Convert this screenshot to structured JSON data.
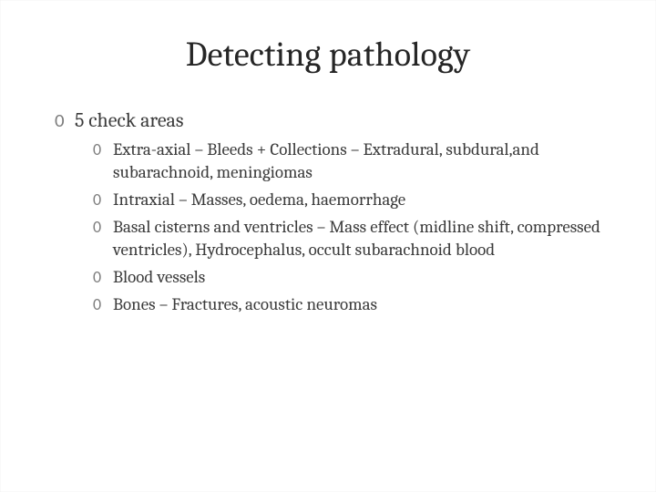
{
  "slide": {
    "title": "Detecting pathology",
    "bullet_glyph": "0",
    "bullet_color": "#7d7d7d",
    "title_color": "#262626",
    "body_color": "#3b3b3b",
    "background_color": "#ffffff",
    "title_fontsize": 38,
    "body_fontsize_l1": 22,
    "body_fontsize_l2": 19,
    "font_family": "Cambria",
    "level1": [
      {
        "text": "5 check areas",
        "level2": [
          {
            "text": "Extra-axial – Bleeds + Collections – Extradural, subdural,and subarachnoid, meningiomas"
          },
          {
            "text": "Intraxial – Masses, oedema, haemorrhage"
          },
          {
            "text": "Basal cisterns and ventricles – Mass effect (midline shift, compressed ventricles), Hydrocephalus, occult subarachnoid blood"
          },
          {
            "text": "Blood vessels"
          },
          {
            "text": "Bones – Fractures, acoustic neuromas"
          }
        ]
      }
    ]
  }
}
